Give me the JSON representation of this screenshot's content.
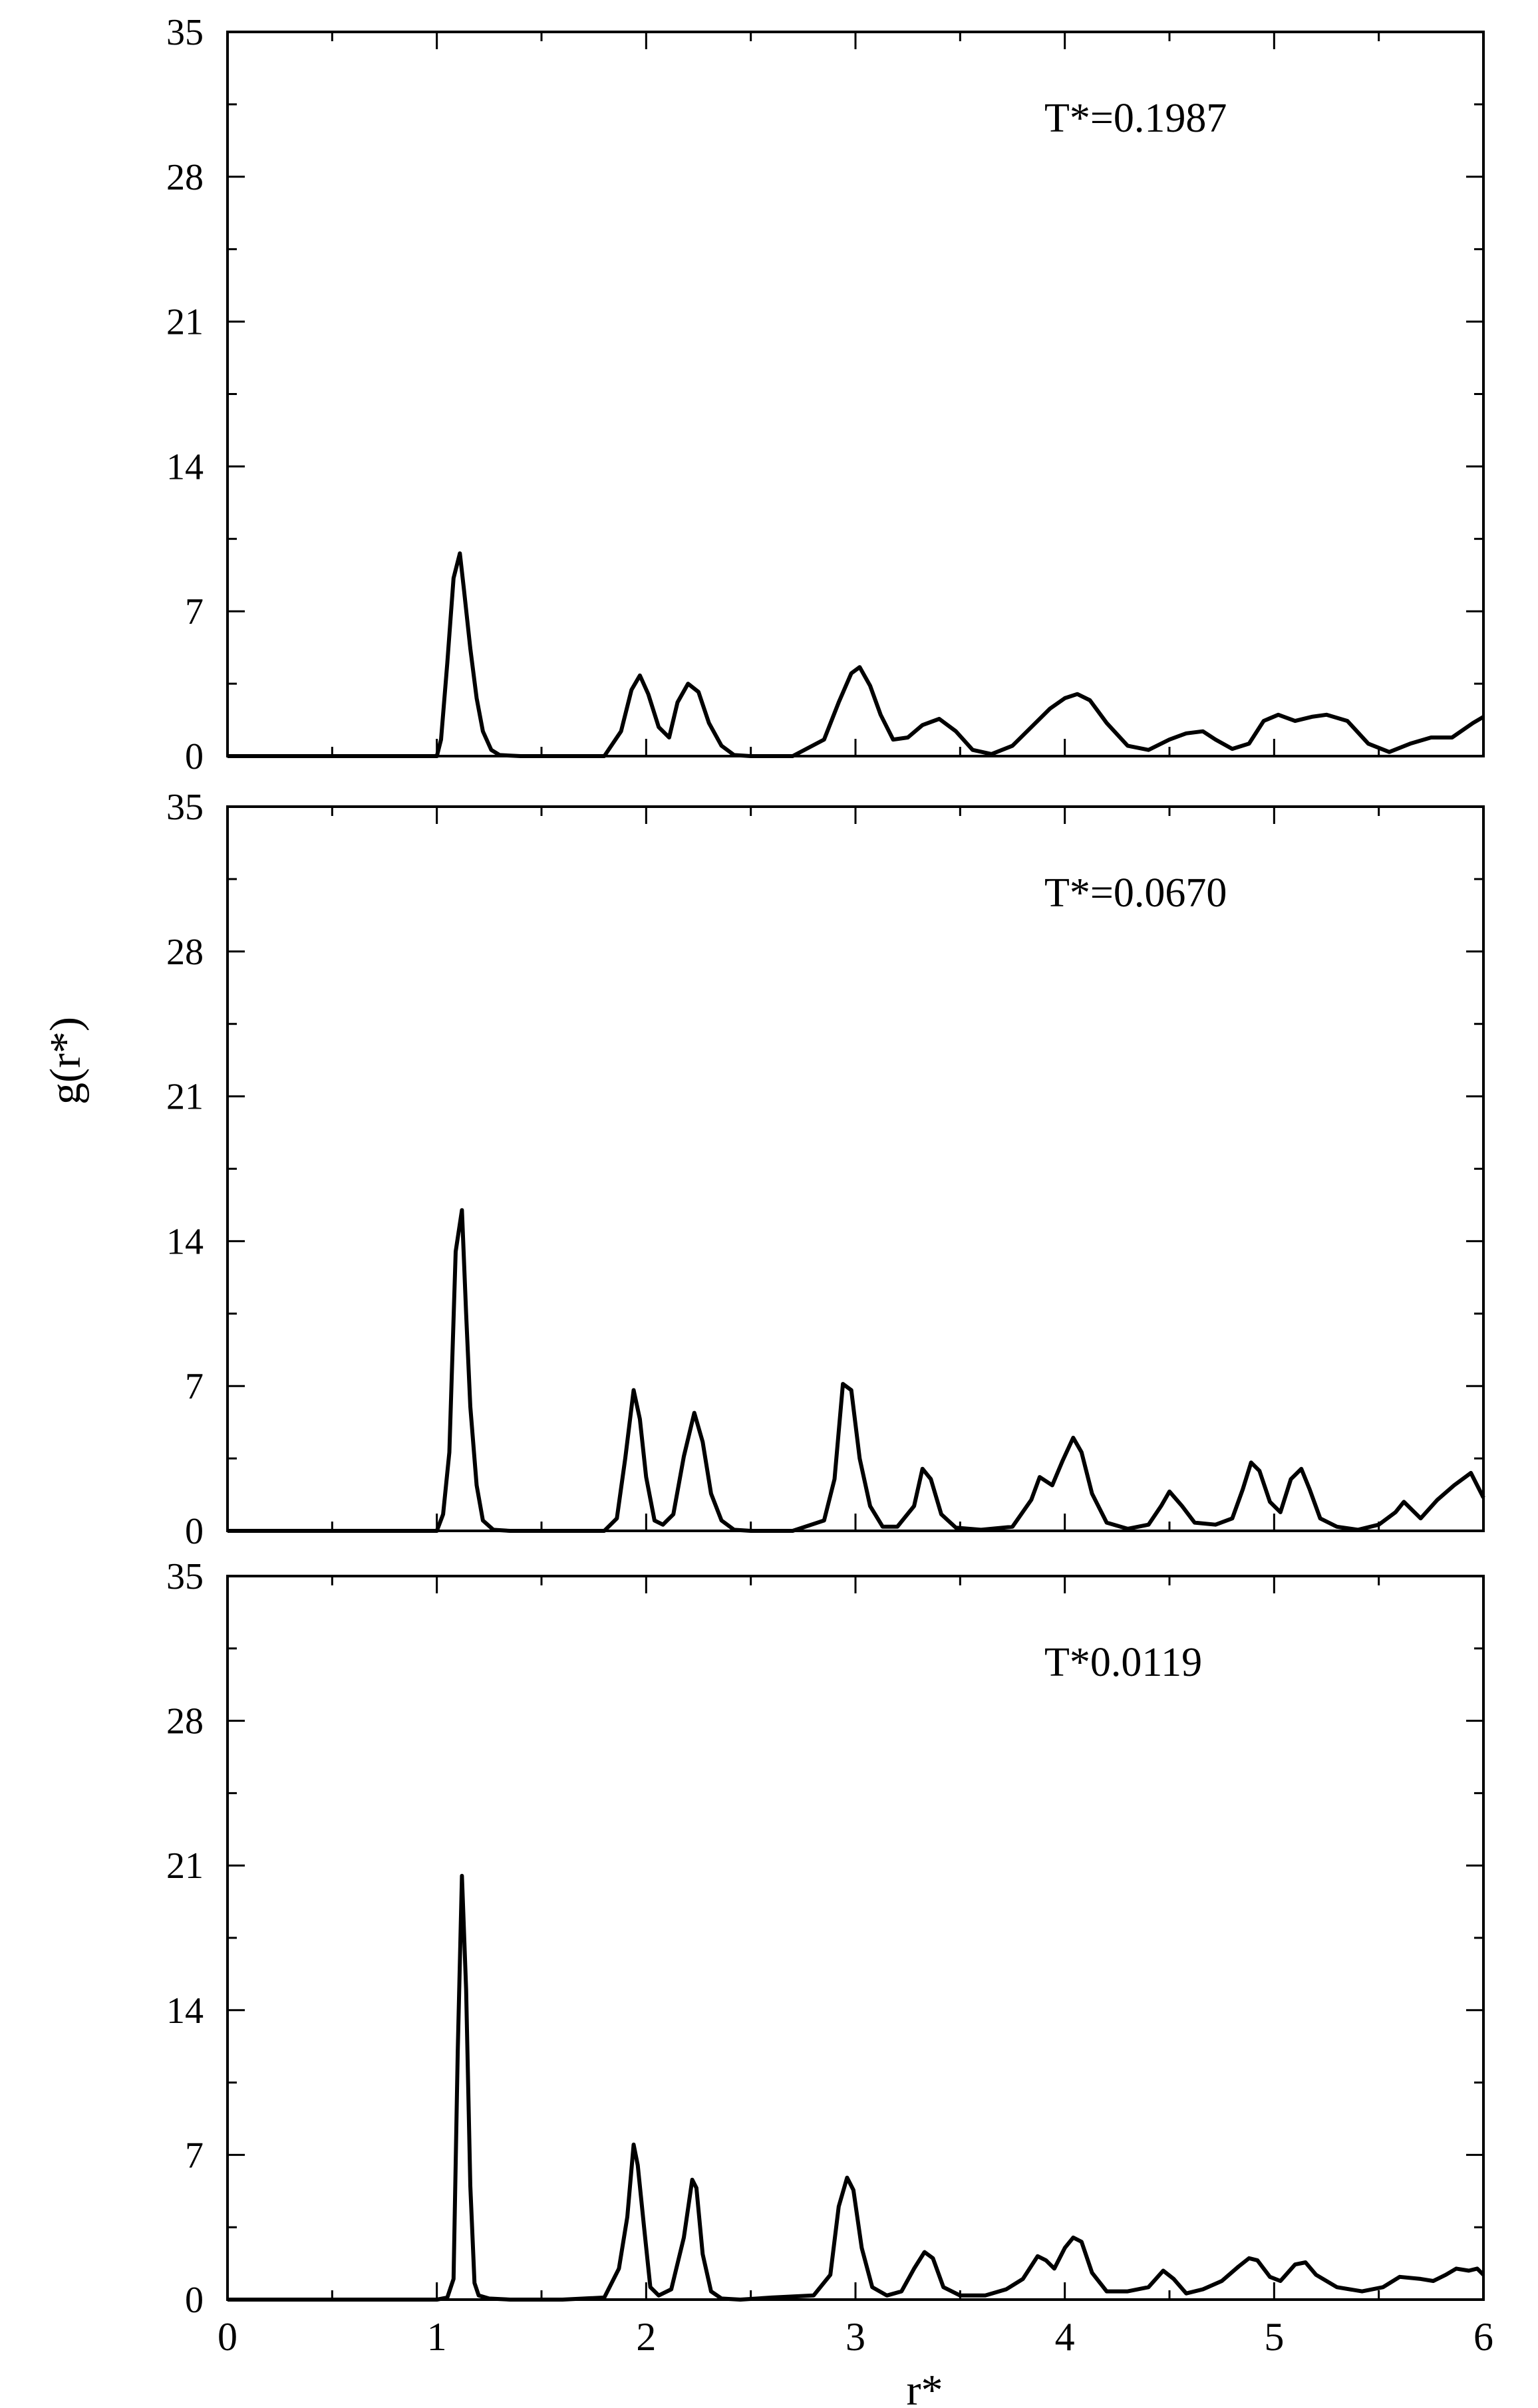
{
  "chart_data": {
    "type": "line",
    "layout": "three vertically stacked panels sharing x axis",
    "ylabel": "g(r*)",
    "xlabel": "r*",
    "xlim": [
      0,
      6
    ],
    "ylim": [
      0,
      35
    ],
    "xticks": [
      0,
      1,
      2,
      3,
      4,
      5,
      6
    ],
    "yticks": [
      0,
      7,
      14,
      21,
      28,
      35
    ],
    "grid": false,
    "legend": "none",
    "line_color": "#000000",
    "panels": [
      {
        "annotation": "T*=0.1987",
        "x": [
          0,
          0.5,
          1.0,
          1.02,
          1.05,
          1.08,
          1.11,
          1.13,
          1.16,
          1.19,
          1.22,
          1.26,
          1.3,
          1.4,
          1.6,
          1.8,
          1.88,
          1.93,
          1.97,
          2.01,
          2.06,
          2.11,
          2.15,
          2.2,
          2.25,
          2.3,
          2.36,
          2.42,
          2.5,
          2.7,
          2.85,
          2.92,
          2.98,
          3.02,
          3.07,
          3.12,
          3.18,
          3.25,
          3.32,
          3.4,
          3.48,
          3.56,
          3.65,
          3.75,
          3.85,
          3.93,
          4.0,
          4.06,
          4.12,
          4.2,
          4.3,
          4.4,
          4.5,
          4.58,
          4.66,
          4.72,
          4.8,
          4.88,
          4.95,
          5.02,
          5.1,
          5.18,
          5.25,
          5.35,
          5.45,
          5.55,
          5.65,
          5.75,
          5.85,
          5.95,
          6.0
        ],
        "y": [
          0,
          0,
          0,
          0.8,
          4.5,
          8.6,
          9.8,
          8.0,
          5.2,
          2.8,
          1.2,
          0.3,
          0.05,
          0,
          0,
          0,
          1.2,
          3.2,
          3.9,
          3.0,
          1.4,
          0.9,
          2.6,
          3.5,
          3.1,
          1.6,
          0.5,
          0.05,
          0,
          0,
          0.8,
          2.6,
          4.0,
          4.3,
          3.4,
          2.0,
          0.8,
          0.9,
          1.5,
          1.8,
          1.2,
          0.3,
          0.1,
          0.5,
          1.5,
          2.3,
          2.8,
          3.0,
          2.7,
          1.6,
          0.5,
          0.3,
          0.8,
          1.1,
          1.2,
          0.8,
          0.35,
          0.6,
          1.7,
          2.0,
          1.7,
          1.9,
          2.0,
          1.7,
          0.6,
          0.2,
          0.6,
          0.9,
          0.9,
          1.6,
          1.9
        ]
      },
      {
        "annotation": "T*=0.0670",
        "x": [
          0,
          0.5,
          1.0,
          1.03,
          1.06,
          1.09,
          1.12,
          1.14,
          1.16,
          1.19,
          1.22,
          1.27,
          1.35,
          1.6,
          1.8,
          1.86,
          1.9,
          1.94,
          1.97,
          2.0,
          2.04,
          2.08,
          2.13,
          2.18,
          2.23,
          2.27,
          2.31,
          2.36,
          2.42,
          2.5,
          2.7,
          2.85,
          2.9,
          2.94,
          2.98,
          3.02,
          3.07,
          3.13,
          3.2,
          3.28,
          3.32,
          3.36,
          3.41,
          3.48,
          3.6,
          3.75,
          3.84,
          3.88,
          3.94,
          3.99,
          4.04,
          4.08,
          4.13,
          4.2,
          4.3,
          4.4,
          4.46,
          4.5,
          4.56,
          4.62,
          4.72,
          4.8,
          4.85,
          4.89,
          4.93,
          4.98,
          5.03,
          5.08,
          5.13,
          5.17,
          5.22,
          5.3,
          5.4,
          5.5,
          5.58,
          5.62,
          5.7,
          5.78,
          5.86,
          5.94,
          6.0
        ],
        "y": [
          0,
          0,
          0,
          0.8,
          3.8,
          13.5,
          15.5,
          10.5,
          6.0,
          2.2,
          0.5,
          0.05,
          0,
          0,
          0,
          0.6,
          3.5,
          6.8,
          5.4,
          2.6,
          0.5,
          0.3,
          0.8,
          3.6,
          5.7,
          4.3,
          1.8,
          0.5,
          0.05,
          0,
          0,
          0.5,
          2.5,
          7.1,
          6.8,
          3.5,
          1.2,
          0.2,
          0.2,
          1.2,
          3.0,
          2.5,
          0.8,
          0.15,
          0.05,
          0.2,
          1.5,
          2.6,
          2.2,
          3.4,
          4.5,
          3.8,
          1.8,
          0.4,
          0.1,
          0.3,
          1.2,
          1.9,
          1.2,
          0.4,
          0.3,
          0.6,
          2.0,
          3.3,
          2.9,
          1.4,
          0.9,
          2.5,
          3.0,
          2.0,
          0.6,
          0.2,
          0.05,
          0.3,
          0.9,
          1.4,
          0.6,
          1.5,
          2.2,
          2.8,
          1.6
        ]
      },
      {
        "annotation": "T*0.0119",
        "x": [
          0,
          0.5,
          1.0,
          1.05,
          1.08,
          1.1,
          1.12,
          1.14,
          1.16,
          1.18,
          1.2,
          1.25,
          1.35,
          1.6,
          1.8,
          1.87,
          1.91,
          1.94,
          1.96,
          1.99,
          2.02,
          2.06,
          2.12,
          2.18,
          2.22,
          2.24,
          2.27,
          2.31,
          2.36,
          2.45,
          2.6,
          2.8,
          2.88,
          2.92,
          2.96,
          2.99,
          3.03,
          3.08,
          3.15,
          3.22,
          3.28,
          3.33,
          3.37,
          3.42,
          3.5,
          3.62,
          3.72,
          3.8,
          3.87,
          3.91,
          3.95,
          4.0,
          4.04,
          4.08,
          4.13,
          4.2,
          4.3,
          4.4,
          4.47,
          4.52,
          4.58,
          4.66,
          4.75,
          4.83,
          4.88,
          4.92,
          4.98,
          5.03,
          5.1,
          5.15,
          5.2,
          5.3,
          5.42,
          5.52,
          5.6,
          5.7,
          5.76,
          5.82,
          5.87,
          5.93,
          5.97,
          6.0
        ],
        "y": [
          0,
          0,
          0,
          0.1,
          1.0,
          12.0,
          20.5,
          15.0,
          5.5,
          0.8,
          0.2,
          0.05,
          0,
          0,
          0.1,
          1.5,
          4.0,
          7.5,
          6.5,
          3.5,
          0.6,
          0.2,
          0.5,
          3.0,
          5.8,
          5.4,
          2.2,
          0.4,
          0.05,
          0,
          0.1,
          0.2,
          1.2,
          4.5,
          5.9,
          5.3,
          2.5,
          0.6,
          0.2,
          0.4,
          1.5,
          2.3,
          2.0,
          0.6,
          0.2,
          0.2,
          0.5,
          1.0,
          2.1,
          1.9,
          1.5,
          2.5,
          3.0,
          2.8,
          1.3,
          0.4,
          0.4,
          0.6,
          1.4,
          1.0,
          0.3,
          0.5,
          0.9,
          1.6,
          2.0,
          1.9,
          1.1,
          0.9,
          1.7,
          1.8,
          1.2,
          0.6,
          0.4,
          0.6,
          1.1,
          1.0,
          0.9,
          1.2,
          1.5,
          1.4,
          1.5,
          1.2
        ]
      }
    ]
  }
}
